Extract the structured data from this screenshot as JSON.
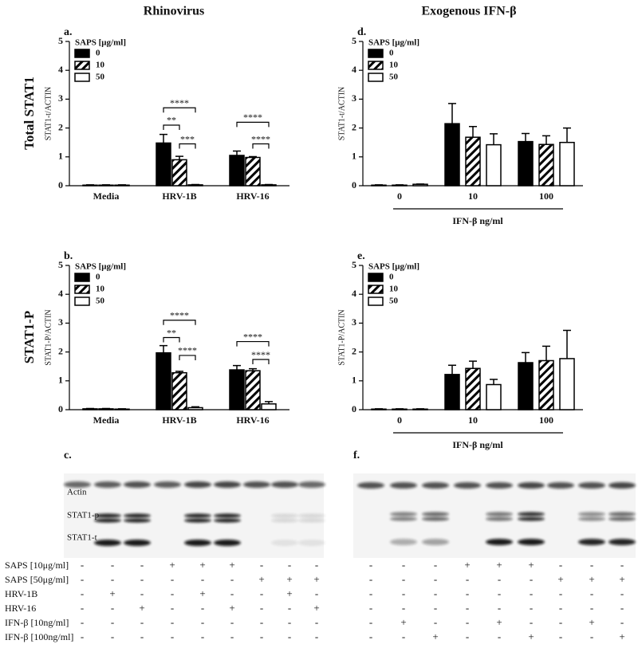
{
  "column_titles": [
    "Rhinovirus",
    "Exogenous IFN-β"
  ],
  "row_titles": [
    "Total STAT1",
    "STAT1-P"
  ],
  "chart_data": [
    {
      "type": "bar",
      "panel": "a.",
      "ylabel": "STAT1-t/ACTIN",
      "legend_title": "SAPS [μg/ml]",
      "categories": [
        "Media",
        "HRV-1B",
        "HRV-16"
      ],
      "series": [
        {
          "name": "0",
          "color": "#000000",
          "fill": "solid",
          "values": [
            0.02,
            1.48,
            1.05
          ],
          "errors": [
            0.01,
            0.3,
            0.15
          ]
        },
        {
          "name": "10",
          "color": "#000000",
          "fill": "hatch",
          "values": [
            0.02,
            0.9,
            0.98
          ],
          "errors": [
            0.01,
            0.12,
            0.03
          ]
        },
        {
          "name": "50",
          "color": "#000000",
          "fill": "none",
          "values": [
            0.02,
            0.03,
            0.03
          ],
          "errors": [
            0.01,
            0.01,
            0.01
          ]
        }
      ],
      "ylim": [
        0,
        5
      ],
      "yticks": [
        0,
        1,
        2,
        3,
        4,
        5
      ],
      "annotations": [
        {
          "text": "****",
          "category": 1,
          "from": 0,
          "to": 2,
          "y": 2.7
        },
        {
          "text": "**",
          "category": 1,
          "from": 0,
          "to": 1,
          "y": 2.1
        },
        {
          "text": "***",
          "category": 1,
          "from": 1,
          "to": 2,
          "y": 1.45
        },
        {
          "text": "****",
          "category": 2,
          "from": 0,
          "to": 2,
          "y": 2.2
        },
        {
          "text": "****",
          "category": 2,
          "from": 1,
          "to": 2,
          "y": 1.45
        }
      ]
    },
    {
      "type": "bar",
      "panel": "b.",
      "ylabel": "STAT1-P/ACTIN",
      "legend_title": "SAPS [μg/ml]",
      "categories": [
        "Media",
        "HRV-1B",
        "HRV-16"
      ],
      "series": [
        {
          "name": "0",
          "color": "#000000",
          "fill": "solid",
          "values": [
            0.03,
            1.97,
            1.38
          ],
          "errors": [
            0.01,
            0.25,
            0.15
          ]
        },
        {
          "name": "10",
          "color": "#000000",
          "fill": "hatch",
          "values": [
            0.03,
            1.28,
            1.35
          ],
          "errors": [
            0.01,
            0.05,
            0.07
          ]
        },
        {
          "name": "50",
          "color": "#000000",
          "fill": "none",
          "values": [
            0.02,
            0.07,
            0.2
          ],
          "errors": [
            0.01,
            0.03,
            0.08
          ]
        }
      ],
      "ylim": [
        0,
        5
      ],
      "yticks": [
        0,
        1,
        2,
        3,
        4,
        5
      ],
      "annotations": [
        {
          "text": "****",
          "category": 1,
          "from": 0,
          "to": 2,
          "y": 3.1
        },
        {
          "text": "**",
          "category": 1,
          "from": 0,
          "to": 1,
          "y": 2.5
        },
        {
          "text": "****",
          "category": 1,
          "from": 1,
          "to": 2,
          "y": 1.88
        },
        {
          "text": "****",
          "category": 2,
          "from": 0,
          "to": 2,
          "y": 2.36
        },
        {
          "text": "****",
          "category": 2,
          "from": 1,
          "to": 2,
          "y": 1.74
        }
      ]
    },
    {
      "type": "bar",
      "panel": "d.",
      "ylabel": "STAT1-t/ACTIN",
      "legend_title": "SAPS [μg/ml]",
      "xlabel": "IFN-β ng/ml",
      "categories": [
        "0",
        "10",
        "100"
      ],
      "series": [
        {
          "name": "0",
          "color": "#000000",
          "fill": "solid",
          "values": [
            0.02,
            2.15,
            1.53
          ],
          "errors": [
            0.01,
            0.7,
            0.28
          ]
        },
        {
          "name": "10",
          "color": "#000000",
          "fill": "hatch",
          "values": [
            0.02,
            1.68,
            1.43
          ],
          "errors": [
            0.01,
            0.37,
            0.3
          ]
        },
        {
          "name": "50",
          "color": "#000000",
          "fill": "none",
          "values": [
            0.05,
            1.42,
            1.5
          ],
          "errors": [
            0.01,
            0.38,
            0.5
          ]
        }
      ],
      "ylim": [
        0,
        5
      ],
      "yticks": [
        0,
        1,
        2,
        3,
        4,
        5
      ]
    },
    {
      "type": "bar",
      "panel": "e.",
      "ylabel": "STAT1-P/ACTIN",
      "legend_title": "SAPS [μg/ml]",
      "xlabel": "IFN-β ng/ml",
      "categories": [
        "0",
        "10",
        "100"
      ],
      "series": [
        {
          "name": "0",
          "color": "#000000",
          "fill": "solid",
          "values": [
            0.02,
            1.22,
            1.63
          ],
          "errors": [
            0.01,
            0.32,
            0.35
          ]
        },
        {
          "name": "10",
          "color": "#000000",
          "fill": "hatch",
          "values": [
            0.02,
            1.43,
            1.7
          ],
          "errors": [
            0.01,
            0.25,
            0.5
          ]
        },
        {
          "name": "50",
          "color": "#000000",
          "fill": "none",
          "values": [
            0.02,
            0.87,
            1.77
          ],
          "errors": [
            0.01,
            0.18,
            0.98
          ]
        }
      ],
      "ylim": [
        0,
        5
      ],
      "yticks": [
        0,
        1,
        2,
        3,
        4,
        5
      ]
    }
  ],
  "blots": {
    "c": {
      "panel": "c.",
      "rows": [
        "Actin",
        "STAT1-p",
        "STAT1-t"
      ]
    },
    "f": {
      "panel": "f."
    }
  },
  "conditions": {
    "rows": [
      {
        "label": "SAPS [10μg/ml]",
        "c": [
          "-",
          "-",
          "-",
          "+",
          "+",
          "+",
          "-",
          "-",
          "-"
        ],
        "f": [
          "-",
          "-",
          "-",
          "+",
          "+",
          "+",
          "-",
          "-",
          "-"
        ]
      },
      {
        "label": "SAPS [50μg/ml]",
        "c": [
          "-",
          "-",
          "-",
          "-",
          "-",
          "-",
          "+",
          "+",
          "+"
        ],
        "f": [
          "-",
          "-",
          "-",
          "-",
          "-",
          "-",
          "+",
          "+",
          "+"
        ]
      },
      {
        "label": "HRV-1B",
        "c": [
          "-",
          "+",
          "-",
          "-",
          "+",
          "-",
          "-",
          "+",
          "-"
        ],
        "f": [
          "-",
          "-",
          "-",
          "-",
          "-",
          "-",
          "-",
          "-",
          "-"
        ]
      },
      {
        "label": "HRV-16",
        "c": [
          "-",
          "-",
          "+",
          "-",
          "-",
          "+",
          "-",
          "-",
          "+"
        ],
        "f": [
          "-",
          "-",
          "-",
          "-",
          "-",
          "-",
          "-",
          "-",
          "-"
        ]
      },
      {
        "label": "IFN-β [10ng/ml]",
        "c": [
          "-",
          "-",
          "-",
          "-",
          "-",
          "-",
          "-",
          "-",
          "-"
        ],
        "f": [
          "-",
          "+",
          "-",
          "-",
          "+",
          "-",
          "-",
          "+",
          "-"
        ]
      },
      {
        "label": "IFN-β [100ng/ml]",
        "c": [
          "-",
          "-",
          "-",
          "-",
          "-",
          "-",
          "-",
          "-",
          "-"
        ],
        "f": [
          "-",
          "-",
          "+",
          "-",
          "-",
          "+",
          "-",
          "-",
          "+"
        ]
      }
    ]
  }
}
